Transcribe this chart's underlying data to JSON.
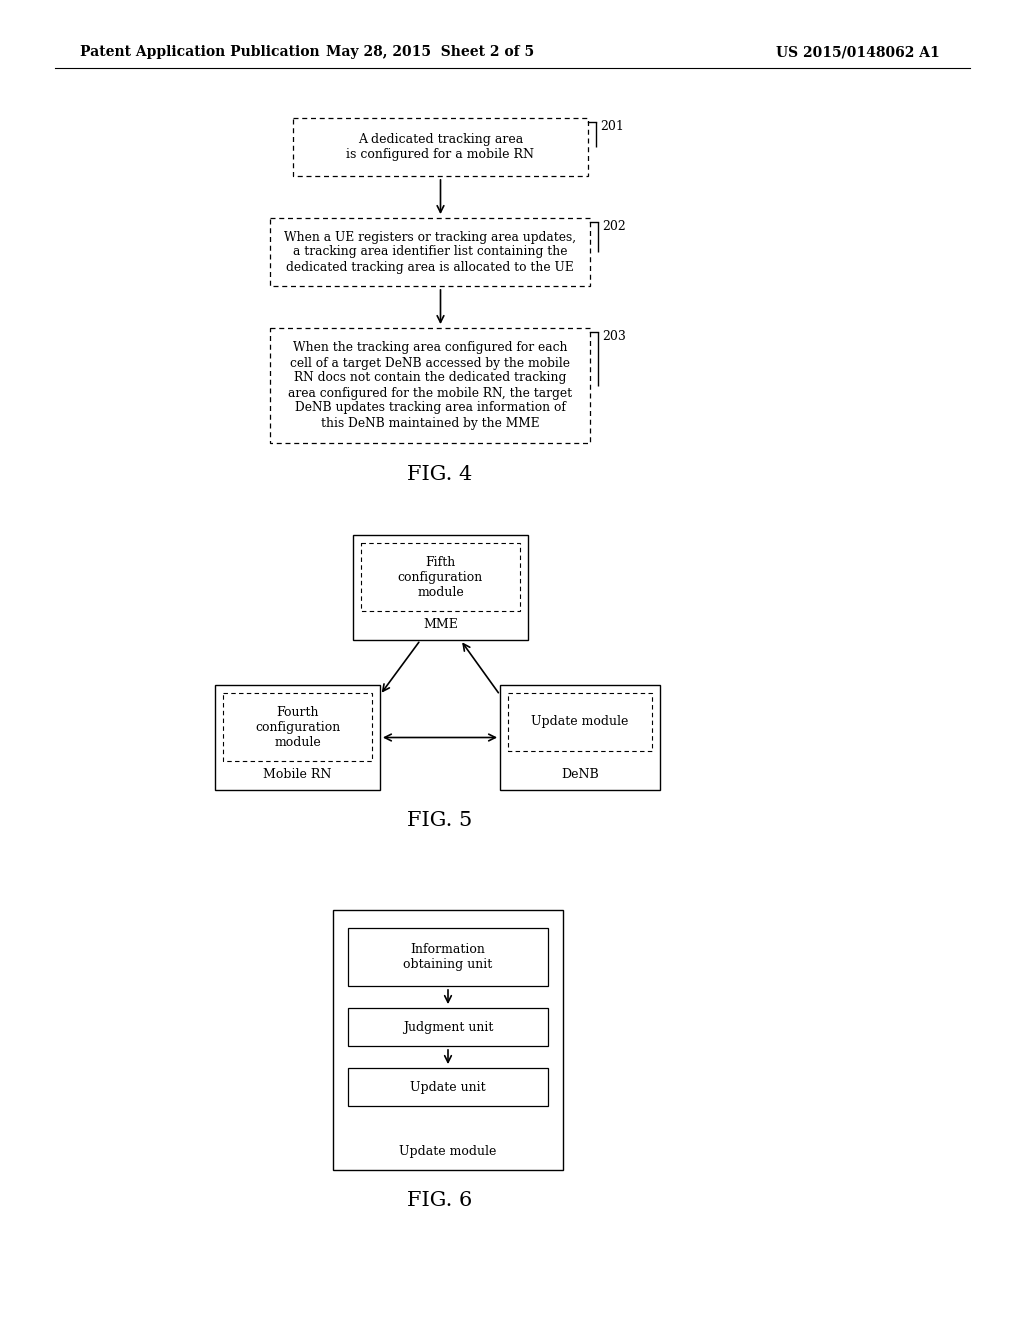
{
  "bg_color": "#ffffff",
  "header_left": "Patent Application Publication",
  "header_mid": "May 28, 2015  Sheet 2 of 5",
  "header_right": "US 2015/0148062 A1",
  "fig4_title": "FIG. 4",
  "fig4_box1_text": "A dedicated tracking area\nis configured for a mobile RN",
  "fig4_box1_tag": "201",
  "fig4_box2_text": "When a UE registers or tracking area updates,\na tracking area identifier list containing the\ndedicated tracking area is allocated to the UE",
  "fig4_box2_tag": "202",
  "fig4_box3_text": "When the tracking area configured for each\ncell of a target DeNB accessed by the mobile\nRN docs not contain the dedicated tracking\narea configured for the mobile RN, the target\nDeNB updates tracking area information of\nthis DeNB maintained by the MME",
  "fig4_box3_tag": "203",
  "fig5_title": "FIG. 5",
  "fig5_mme_inner": "Fifth\nconfiguration\nmodule",
  "fig5_mme_outer": "MME",
  "fig5_rn_inner": "Fourth\nconfiguration\nmodule",
  "fig5_rn_outer": "Mobile RN",
  "fig5_denb_inner": "Update module",
  "fig5_denb_outer": "DeNB",
  "fig6_title": "FIG. 6",
  "fig6_outer_label": "Update module",
  "fig6_box1_text": "Information\nobtaining unit",
  "fig6_box2_text": "Judgment unit",
  "fig6_box3_text": "Update unit"
}
